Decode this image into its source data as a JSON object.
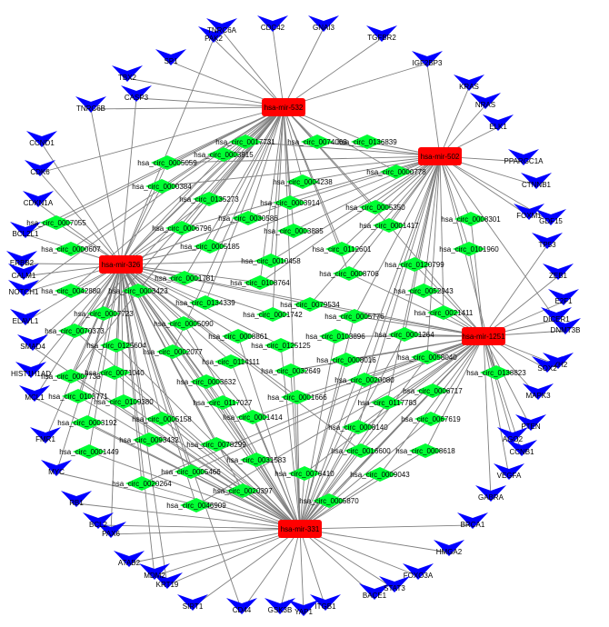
{
  "colors": {
    "mirna": "#ff0000",
    "circrna": "#00ff33",
    "gene": "#0000ff",
    "edge": "#7f7f7f"
  },
  "legend_icons": {
    "mirna": "red-rounded-rectangle",
    "circrna": "green-diamond",
    "gene": "blue-arrowhead-v"
  },
  "mirnas": [
    {
      "id": "m532",
      "label": "hsa-mir-532"
    },
    {
      "id": "m502",
      "label": "hsa-mir-502"
    },
    {
      "id": "m326",
      "label": "hsa-mir-326"
    },
    {
      "id": "m1251",
      "label": "hsa-mir-1251"
    },
    {
      "id": "m331",
      "label": "hsa-mir-331"
    }
  ],
  "circrnas": [
    {
      "id": "c0017731",
      "label": "hsa_circ_0017731"
    },
    {
      "id": "c0074063",
      "label": "hsa_circ_0074063"
    },
    {
      "id": "c0136839",
      "label": "hsa_circ_0136839"
    },
    {
      "id": "c0005059",
      "label": "hsa_circ_0005059"
    },
    {
      "id": "c0003915",
      "label": "hsa_circ_0003915"
    },
    {
      "id": "c0000778",
      "label": "hsa_circ_0000778"
    },
    {
      "id": "c0000384",
      "label": "hsa_circ_0000384"
    },
    {
      "id": "c0004238",
      "label": "hsa_circ_0004238"
    },
    {
      "id": "c0135273",
      "label": "hsa_circ_0135273"
    },
    {
      "id": "c0003914",
      "label": "hsa_circ_0003914"
    },
    {
      "id": "c0005350",
      "label": "hsa_circ_0005350"
    },
    {
      "id": "c0007055",
      "label": "hsa_circ_0007055"
    },
    {
      "id": "c0006796",
      "label": "hsa_circ_0006796"
    },
    {
      "id": "c0030586",
      "label": "hsa_circ_0030586"
    },
    {
      "id": "c0003885",
      "label": "hsa_circ_0003885"
    },
    {
      "id": "c0001417",
      "label": "hsa_circ_0001417"
    },
    {
      "id": "c0008301",
      "label": "hsa_circ_0008301"
    },
    {
      "id": "c0000607",
      "label": "hsa_circ_0000607"
    },
    {
      "id": "c0005185",
      "label": "hsa_circ_0005185"
    },
    {
      "id": "c0112601",
      "label": "hsa_circ_0112601"
    },
    {
      "id": "c0101960",
      "label": "hsa_circ_0101960"
    },
    {
      "id": "c0010458",
      "label": "hsa_circ_0010458"
    },
    {
      "id": "c0120799",
      "label": "hsa_circ_0120799"
    },
    {
      "id": "c0001781",
      "label": "hsa_circ_0001781"
    },
    {
      "id": "c0008706",
      "label": "hsa_circ_0008706"
    },
    {
      "id": "c0042880",
      "label": "hsa_circ_0042880"
    },
    {
      "id": "c0003423",
      "label": "hsa_circ_0003423"
    },
    {
      "id": "c0108764",
      "label": "hsa_circ_0108764"
    },
    {
      "id": "c0052943",
      "label": "hsa_circ_0052943"
    },
    {
      "id": "c0134339",
      "label": "hsa_circ_0134339"
    },
    {
      "id": "c0079534",
      "label": "hsa_circ_0079534"
    },
    {
      "id": "c0007723",
      "label": "hsa_circ_0007723"
    },
    {
      "id": "c0001742",
      "label": "hsa_circ_0001742"
    },
    {
      "id": "c0005776",
      "label": "hsa_circ_0005776"
    },
    {
      "id": "c0021411",
      "label": "hsa_circ_0021411"
    },
    {
      "id": "c0005090",
      "label": "hsa_circ_0005090"
    },
    {
      "id": "c0070373",
      "label": "hsa_circ_0070373"
    },
    {
      "id": "c0008861",
      "label": "hsa_circ_0008861"
    },
    {
      "id": "c0103896",
      "label": "hsa_circ_0103896"
    },
    {
      "id": "c0001264",
      "label": "hsa_circ_0001264"
    },
    {
      "id": "c0125604",
      "label": "hsa_circ_0125604"
    },
    {
      "id": "c0125125",
      "label": "hsa_circ_0125125"
    },
    {
      "id": "c0002077",
      "label": "hsa_circ_0002077"
    },
    {
      "id": "c0114111",
      "label": "hsa_circ_0114111"
    },
    {
      "id": "c0008016",
      "label": "hsa_circ_0008016"
    },
    {
      "id": "c0058040",
      "label": "hsa_circ_0058040"
    },
    {
      "id": "c0071040",
      "label": "hsa_circ_0071040"
    },
    {
      "id": "c0032649",
      "label": "hsa_circ_0032649"
    },
    {
      "id": "c0007733",
      "label": "hsa_circ_0007733"
    },
    {
      "id": "c0138823",
      "label": "hsa_circ_0138823"
    },
    {
      "id": "c0003632",
      "label": "hsa_circ_0003632"
    },
    {
      "id": "c0020080",
      "label": "hsa_circ_0020080"
    },
    {
      "id": "c0103771",
      "label": "hsa_circ_0103771"
    },
    {
      "id": "c0109380",
      "label": "hsa_circ_0109380"
    },
    {
      "id": "c0001666",
      "label": "hsa_circ_0001666"
    },
    {
      "id": "c0006717",
      "label": "hsa_circ_0006717"
    },
    {
      "id": "c0117027",
      "label": "hsa_circ_0117027"
    },
    {
      "id": "c0117783",
      "label": "hsa_circ_0117783"
    },
    {
      "id": "c0005158",
      "label": "hsa_circ_0005158"
    },
    {
      "id": "c0003192",
      "label": "hsa_circ_0003192"
    },
    {
      "id": "c0001414",
      "label": "hsa_circ_0001414"
    },
    {
      "id": "c0067619",
      "label": "hsa_circ_0067619"
    },
    {
      "id": "c0093432",
      "label": "hsa_circ_0093432"
    },
    {
      "id": "c0008140",
      "label": "hsa_circ_0008140"
    },
    {
      "id": "c0078299",
      "label": "hsa_circ_0078299"
    },
    {
      "id": "c0001449",
      "label": "hsa_circ_0001449"
    },
    {
      "id": "c0016600",
      "label": "hsa_circ_0016600"
    },
    {
      "id": "c0008618",
      "label": "hsa_circ_0008618"
    },
    {
      "id": "c0031583",
      "label": "hsa_circ_0031583"
    },
    {
      "id": "c0005466",
      "label": "hsa_circ_0005466"
    },
    {
      "id": "c0076410",
      "label": "hsa_circ_0076410"
    },
    {
      "id": "c0009043",
      "label": "hsa_circ_0009043"
    },
    {
      "id": "c0020264",
      "label": "hsa_circ_0020264"
    },
    {
      "id": "c0020397",
      "label": "hsa_circ_0020397"
    },
    {
      "id": "c0005870",
      "label": "hsa_circ_0005870"
    },
    {
      "id": "c0046909",
      "label": "hsa_circ_0046909"
    }
  ],
  "genes": [
    {
      "id": "g01",
      "label": "PAK2"
    },
    {
      "id": "g02",
      "label": "CDC42"
    },
    {
      "id": "g03",
      "label": "GNAI3"
    },
    {
      "id": "g04",
      "label": "TGFBR2"
    },
    {
      "id": "g05",
      "label": "IGF2BP3"
    },
    {
      "id": "g06",
      "label": "TBX2"
    },
    {
      "id": "g07",
      "label": "SP1"
    },
    {
      "id": "g08",
      "label": "KRAS"
    },
    {
      "id": "g09",
      "label": "TNRC6B"
    },
    {
      "id": "g10",
      "label": "ELK1"
    },
    {
      "id": "g11",
      "label": "CCND1"
    },
    {
      "id": "g12",
      "label": "PPARGC1A"
    },
    {
      "id": "g13",
      "label": "CDK6"
    },
    {
      "id": "g14",
      "label": "CTNNB1"
    },
    {
      "id": "g15",
      "label": "CDKN1A"
    },
    {
      "id": "g16",
      "label": "FOXM1"
    },
    {
      "id": "g17",
      "label": "BCL2L1"
    },
    {
      "id": "g18",
      "label": "TP53"
    },
    {
      "id": "g19",
      "label": "ERBB2"
    },
    {
      "id": "g20",
      "label": "ZEB1"
    },
    {
      "id": "g21",
      "label": "NOTCH1"
    },
    {
      "id": "g22",
      "label": "E2F1"
    },
    {
      "id": "g23",
      "label": "ELAVL1"
    },
    {
      "id": "g24",
      "label": "DNMT3B"
    },
    {
      "id": "g25",
      "label": "SMAD4"
    },
    {
      "id": "g26",
      "label": "EZH2"
    },
    {
      "id": "g27",
      "label": "HIST1H1AD"
    },
    {
      "id": "g28",
      "label": "MAPK3"
    },
    {
      "id": "g29",
      "label": "MCL1"
    },
    {
      "id": "g30",
      "label": "PTEN"
    },
    {
      "id": "g31",
      "label": "FMR1"
    },
    {
      "id": "g32",
      "label": "CCNB1"
    },
    {
      "id": "g33",
      "label": "MYC"
    },
    {
      "id": "g34",
      "label": "VEGFA"
    },
    {
      "id": "g35",
      "label": "RB1"
    },
    {
      "id": "g36",
      "label": "GABRA"
    },
    {
      "id": "g37",
      "label": "PAX6"
    },
    {
      "id": "g38",
      "label": "BRCA1"
    },
    {
      "id": "g39",
      "label": "ATAB2"
    },
    {
      "id": "g40",
      "label": "HMGA2"
    },
    {
      "id": "g41",
      "label": "KRT19"
    },
    {
      "id": "g42",
      "label": "FOXO3A"
    },
    {
      "id": "g43",
      "label": "SIRT1"
    },
    {
      "id": "g44",
      "label": "BACE1"
    },
    {
      "id": "g45",
      "label": "CD44"
    },
    {
      "id": "g46",
      "label": "ITGB1"
    },
    {
      "id": "g47",
      "label": "GSK3B"
    },
    {
      "id": "g48",
      "label": "TNRC6A"
    },
    {
      "id": "g49",
      "label": "CASP3"
    },
    {
      "id": "g50",
      "label": "NRAS"
    },
    {
      "id": "g51",
      "label": "GDF15"
    },
    {
      "id": "g52",
      "label": "CALM1"
    },
    {
      "id": "g53",
      "label": "DICER1"
    },
    {
      "id": "g54",
      "label": "SOX2"
    },
    {
      "id": "g55",
      "label": "AGO2"
    },
    {
      "id": "g56",
      "label": "BCL2"
    },
    {
      "id": "g57",
      "label": "MDM2"
    },
    {
      "id": "g58",
      "label": "STAT3"
    },
    {
      "id": "g59",
      "label": "YAP1"
    }
  ]
}
